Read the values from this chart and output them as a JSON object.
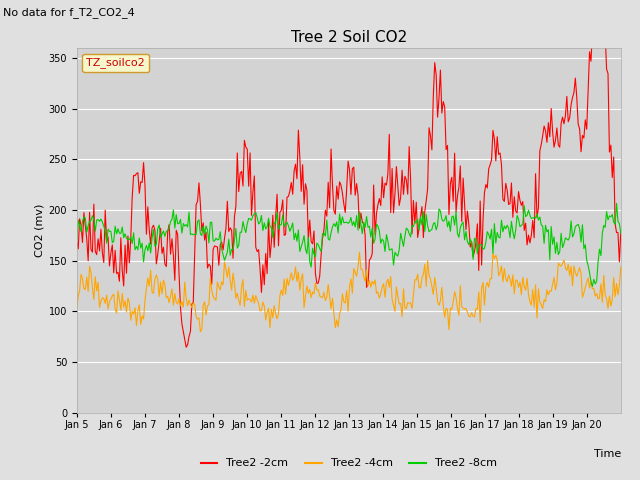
{
  "title": "Tree 2 Soil CO2",
  "no_data_text": "No data for f_T2_CO2_4",
  "ylabel": "CO2 (mv)",
  "xlabel": "Time",
  "legend_label": "TZ_soilco2",
  "series_labels": [
    "Tree2 -2cm",
    "Tree2 -4cm",
    "Tree2 -8cm"
  ],
  "series_colors": [
    "#ff0000",
    "#ffa500",
    "#00cc00"
  ],
  "fig_facecolor": "#e0e0e0",
  "plot_bg_color": "#d3d3d3",
  "ylim": [
    0,
    360
  ],
  "yticks": [
    0,
    50,
    100,
    150,
    200,
    250,
    300,
    350
  ],
  "xtick_labels": [
    "Jan 5",
    "Jan 6",
    "Jan 7",
    "Jan 8",
    "Jan 9",
    "Jan 10",
    "Jan 11",
    "Jan 12",
    "Jan 13",
    "Jan 14",
    "Jan 15",
    "Jan 16",
    "Jan 17",
    "Jan 18",
    "Jan 19",
    "Jan 20"
  ],
  "n_days": 16,
  "seed": 42
}
